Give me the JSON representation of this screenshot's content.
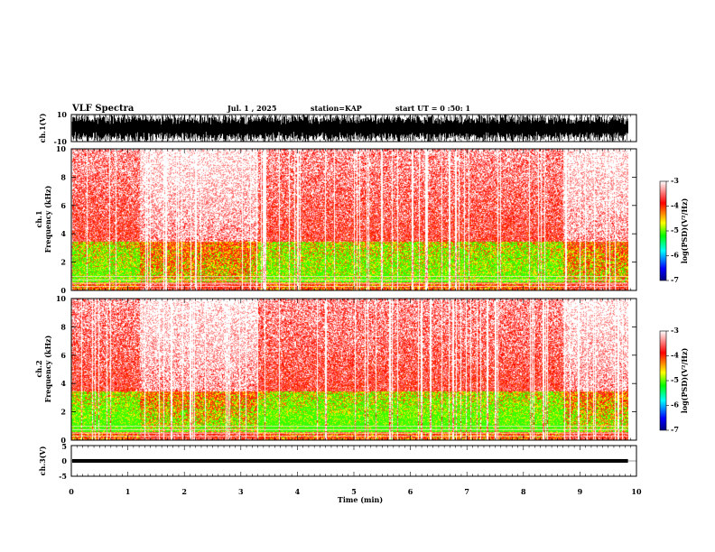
{
  "header": {
    "title": "VLF Spectra",
    "date": "Jul. 1 , 2025",
    "station": "station=KAP",
    "start": "start UT = 0 :50: 1"
  },
  "chart_data": [
    {
      "type": "line",
      "name": "waveform-ch1",
      "ylabel": "ch.1(V)",
      "ylim": [
        -10,
        10
      ],
      "yticks": [
        "10",
        "-10"
      ],
      "xlim": [
        0,
        10
      ]
    },
    {
      "type": "heatmap",
      "name": "spectrogram-ch1",
      "ylabel": "ch.1 Frequency (kHz)",
      "ylim": [
        0,
        10
      ],
      "yticks": [
        "0",
        "2",
        "4",
        "6",
        "8",
        "10"
      ],
      "xlim": [
        0,
        10
      ],
      "xdata_end": 9.85
    },
    {
      "type": "heatmap",
      "name": "spectrogram-ch2",
      "ylabel": "ch.2 Frequency (kHz)",
      "ylim": [
        0,
        10
      ],
      "yticks": [
        "0",
        "2",
        "4",
        "6",
        "8",
        "10"
      ],
      "xlim": [
        0,
        10
      ],
      "xdata_end": 9.85
    },
    {
      "type": "line",
      "name": "waveform-ch3",
      "ylabel": "ch.3(V)",
      "ylim": [
        -5,
        5
      ],
      "yticks": [
        "5",
        "0",
        "-5"
      ],
      "xlim": [
        0,
        10
      ]
    }
  ],
  "time_axis": {
    "label": "Time (min)",
    "ticks": [
      "0",
      "1",
      "2",
      "3",
      "4",
      "5",
      "6",
      "7",
      "8",
      "9",
      "10"
    ]
  },
  "colorbar": {
    "label": "log(PSD)(V²/Hz)",
    "ticks": [
      "-3",
      "-4",
      "-5",
      "-6",
      "-7"
    ],
    "range": [
      -7,
      -3
    ],
    "colors": [
      "#000080",
      "#0000ff",
      "#00ffff",
      "#00ff00",
      "#ffff00",
      "#ff8000",
      "#ff0000",
      "#ffffff"
    ]
  }
}
